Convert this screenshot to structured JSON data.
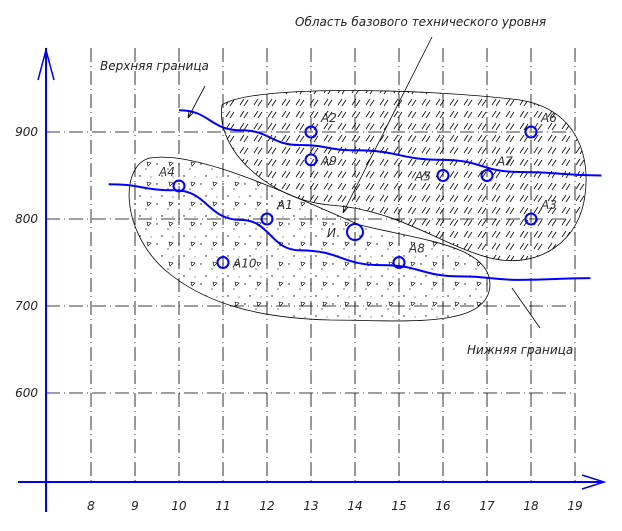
{
  "chart_data": {
    "type": "scatter",
    "title": "",
    "xlabel": "",
    "ylabel": "",
    "xlim": [
      7,
      20
    ],
    "ylim": [
      500,
      990
    ],
    "grid": true,
    "x_ticks": [
      "8",
      "9",
      "10",
      "11",
      "12",
      "13",
      "14",
      "15",
      "16",
      "17",
      "18",
      "19"
    ],
    "y_ticks": [
      "600",
      "700",
      "800",
      "900"
    ],
    "points": [
      {
        "label": "A1",
        "x": 12,
        "y": 800
      },
      {
        "label": "A2",
        "x": 13,
        "y": 900
      },
      {
        "label": "A3",
        "x": 18,
        "y": 800
      },
      {
        "label": "A4",
        "x": 10,
        "y": 838
      },
      {
        "label": "A5",
        "x": 16,
        "y": 850
      },
      {
        "label": "A6",
        "x": 18,
        "y": 900
      },
      {
        "label": "A7",
        "x": 17,
        "y": 850
      },
      {
        "label": "A8",
        "x": 15,
        "y": 750
      },
      {
        "label": "A9",
        "x": 13,
        "y": 868
      },
      {
        "label": "A10",
        "x": 11,
        "y": 750
      },
      {
        "label": "И",
        "x": 14,
        "y": 785,
        "large": true
      }
    ],
    "series": [
      {
        "name": "Верхняя граница",
        "x": [
          10.0,
          11.4,
          12.75,
          14.0,
          16.0,
          17.75,
          19.6
        ],
        "y": [
          925,
          902,
          885,
          879,
          868,
          854,
          850
        ]
      },
      {
        "name": "Нижняя граница",
        "x": [
          8.4,
          9.9,
          11.4,
          12.75,
          14.6,
          16.4,
          17.75,
          19.35
        ],
        "y": [
          840,
          833,
          799,
          764,
          747,
          734,
          730,
          732
        ]
      }
    ],
    "annotations": {
      "upper": "Верхняя граница",
      "lower": "Нижняя граница",
      "region": "Область базового технического уровня"
    },
    "colors": {
      "axis": "#0000ff",
      "points": "#0000ff",
      "grid": "#000000"
    }
  }
}
